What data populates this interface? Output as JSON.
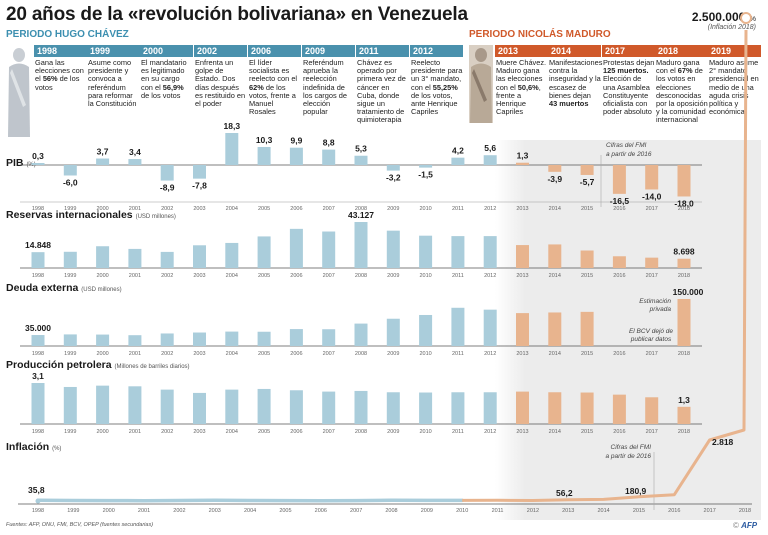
{
  "title": "20 años de la «revolución bolivariana» en Venezuela",
  "periods": {
    "chavez": "PERIODO HUGO CHÁVEZ",
    "maduro": "PERIODO NICOLÁS MADURO"
  },
  "colors": {
    "chavez": "#aacddb",
    "maduro": "#e8b48e",
    "chavez_header": "#4a91ad",
    "maduro_header": "#d0592a",
    "shade": "#ececec"
  },
  "events": [
    {
      "year": "1998",
      "period": "chavez",
      "text": "Gana las elecciones con el <b>56%</b> de los votos"
    },
    {
      "year": "1999",
      "period": "chavez",
      "text": "Asume como presidente y convoca a referéndum para reformar la Constitución"
    },
    {
      "year": "2000",
      "period": "chavez",
      "text": "El mandatario es legitimado en su cargo con el <b>56,9%</b> de los votos"
    },
    {
      "year": "2002",
      "period": "chavez",
      "text": "Enfrenta un golpe de Estado. Dos días después es restituido en el poder"
    },
    {
      "year": "2006",
      "period": "chavez",
      "text": "El líder socialista es reelecto con el <b>62%</b> de los votos, frente a Manuel Rosales"
    },
    {
      "year": "2009",
      "period": "chavez",
      "text": "Referéndum aprueba la reelección indefinida de los cargos de elección popular"
    },
    {
      "year": "2011",
      "period": "chavez",
      "text": "Chávez es operado por primera vez de cáncer en Cuba, donde sigue un tratamiento de quimioterapia"
    },
    {
      "year": "2012",
      "period": "chavez",
      "text": "Reelecto presidente para un 3° mandato, con el <b>55,25%</b> de los votos, ante Henrique Capriles"
    },
    {
      "year": "2013",
      "period": "maduro",
      "text": "Muere Chávez. Maduro gana las elecciones con el <b>50,6%</b>, frente a Henrique Capriles"
    },
    {
      "year": "2014",
      "period": "maduro",
      "text": "Manifestaciones contra la inseguridad y la escasez de bienes dejan <b>43 muertos</b>"
    },
    {
      "year": "2017",
      "period": "maduro",
      "text": "Protestas dejan <b>125 muertos.</b> Elección de una Asamblea Constituyente oficialista con poder absoluto"
    },
    {
      "year": "2018",
      "period": "maduro",
      "text": "Maduro gana con el <b>67%</b> de los votos en elecciones desconocidas por la oposición y la comunidad internacional"
    },
    {
      "year": "2019",
      "period": "maduro",
      "text": "Maduro asume 2° mandato presidencial en medio de una aguda crisis política y económica"
    }
  ],
  "big_inflation": {
    "value": "2.500.000",
    "unit": "%",
    "caption": "(Inflación 2018)"
  },
  "chart_data": [
    {
      "type": "bar",
      "title": "PIB",
      "unit": "(%)",
      "categories": [
        "1998",
        "1999",
        "2000",
        "2001",
        "2002",
        "2003",
        "2004",
        "2005",
        "2006",
        "2007",
        "2008",
        "2009",
        "2010",
        "2011",
        "2012",
        "2013",
        "2014",
        "2015",
        "2016",
        "2017",
        "2018"
      ],
      "values": [
        0.3,
        -6.0,
        3.7,
        3.4,
        -8.9,
        -7.8,
        18.3,
        10.3,
        9.9,
        8.8,
        5.3,
        -3.2,
        -1.5,
        4.2,
        5.6,
        1.3,
        -3.9,
        -5.7,
        -16.5,
        -14.0,
        -18.0
      ],
      "labels": [
        "0,3",
        "-6,0",
        "3,7",
        "3,4",
        "-8,9",
        "-7,8",
        "18,3",
        "10,3",
        "9,9",
        "8,8",
        "5,3",
        "-3,2",
        "-1,5",
        "4,2",
        "5,6",
        "1,3",
        "-3,9",
        "-5,7",
        "-16,5",
        "-14,0",
        "-18,0"
      ],
      "annotation": "Cifras del FMI a partir de 2016",
      "ylim": [
        -18,
        18.3
      ]
    },
    {
      "type": "bar",
      "title": "Reservas internacionales",
      "unit": "(USD millones)",
      "categories": [
        "1998",
        "1999",
        "2000",
        "2001",
        "2002",
        "2003",
        "2004",
        "2005",
        "2006",
        "2007",
        "2008",
        "2009",
        "2010",
        "2011",
        "2012",
        "2013",
        "2014",
        "2015",
        "2016",
        "2017",
        "2018"
      ],
      "values": [
        14848,
        15200,
        20400,
        17900,
        15100,
        21300,
        23500,
        29600,
        36700,
        34200,
        43127,
        35000,
        30300,
        29900,
        29900,
        21500,
        22100,
        16400,
        11000,
        9700,
        8698
      ],
      "labels": [
        "14.848",
        "",
        "",
        "",
        "",
        "",
        "",
        "",
        "",
        "",
        "43.127",
        "",
        "",
        "",
        "",
        "",
        "",
        "",
        "",
        "",
        "8.698"
      ],
      "ylim": [
        0,
        43127
      ]
    },
    {
      "type": "bar",
      "title": "Deuda externa",
      "unit": "(USD millones)",
      "categories": [
        "1998",
        "1999",
        "2000",
        "2001",
        "2002",
        "2003",
        "2004",
        "2005",
        "2006",
        "2007",
        "2008",
        "2009",
        "2010",
        "2011",
        "2012",
        "2013",
        "2014",
        "2015",
        "2016",
        "2017",
        "2018"
      ],
      "values": [
        35000,
        37000,
        36500,
        34500,
        40000,
        43000,
        46000,
        45500,
        54000,
        53500,
        71500,
        87000,
        99000,
        122000,
        116000,
        105000,
        107000,
        109000,
        null,
        null,
        150000
      ],
      "labels": [
        "35.000",
        "",
        "",
        "",
        "",
        "",
        "",
        "",
        "",
        "",
        "",
        "",
        "",
        "",
        "",
        "",
        "",
        "",
        "",
        "",
        "150.000"
      ],
      "annotations": [
        "El BCV dejó de publicar datos",
        "Estimación privada"
      ],
      "ylim": [
        0,
        150000
      ]
    },
    {
      "type": "bar",
      "title": "Producción petrolera",
      "unit": "(Millones de barriles diarios)",
      "categories": [
        "1998",
        "1999",
        "2000",
        "2001",
        "2002",
        "2003",
        "2004",
        "2005",
        "2006",
        "2007",
        "2008",
        "2009",
        "2010",
        "2011",
        "2012",
        "2013",
        "2014",
        "2015",
        "2016",
        "2017",
        "2018"
      ],
      "values": [
        3.1,
        2.8,
        2.9,
        2.85,
        2.6,
        2.35,
        2.6,
        2.65,
        2.55,
        2.45,
        2.5,
        2.4,
        2.38,
        2.4,
        2.4,
        2.45,
        2.4,
        2.38,
        2.22,
        2.02,
        1.3
      ],
      "labels": [
        "3,1",
        "",
        "",
        "",
        "",
        "",
        "",
        "",
        "",
        "",
        "",
        "",
        "",
        "",
        "",
        "",
        "",
        "",
        "",
        "",
        "1,3"
      ],
      "ylim": [
        0,
        3.1
      ]
    },
    {
      "type": "line",
      "title": "Inflación",
      "unit": "(%)",
      "categories": [
        "1998",
        "1999",
        "2000",
        "2001",
        "2002",
        "2003",
        "2004",
        "2005",
        "2006",
        "2007",
        "2008",
        "2009",
        "2010",
        "2011",
        "2012",
        "2013",
        "2014",
        "2015",
        "2016",
        "2017",
        "2018"
      ],
      "values": [
        35.8,
        23.6,
        16.2,
        12.5,
        22.4,
        31.1,
        21.7,
        16.0,
        13.7,
        18.7,
        31.4,
        26.0,
        27.4,
        29.0,
        20.1,
        56.2,
        68.5,
        180.9,
        274.4,
        2818,
        2500000
      ],
      "labels": {
        "0": "35,8",
        "15": "56,2",
        "17": "180,9",
        "19": "2.818"
      },
      "annotation": "Cifras del FMI a partir de 2016",
      "scale": "compressed"
    }
  ],
  "footer": {
    "sources": "Fuentes: AFP, ONU, FMI, BCV, OPEP (fuentes secundarias)",
    "credit_prefix": "©",
    "credit": "AFP"
  }
}
